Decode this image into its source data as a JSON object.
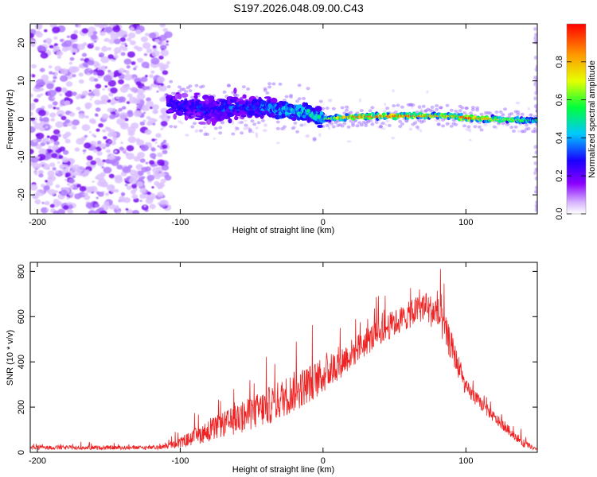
{
  "title": "S197.2026.048.09.00.C43",
  "chart_data": [
    {
      "type": "heatmap",
      "xlabel": "Height of straight line (km)",
      "ylabel": "Frequency (Hz)",
      "xlim": [
        -205,
        150
      ],
      "ylim": [
        -25,
        25
      ],
      "xticks": [
        -200,
        -100,
        0,
        100
      ],
      "yticks": [
        -20,
        -10,
        0,
        10,
        20
      ],
      "colorbar": {
        "label": "Normalized spectral amplitude",
        "range": [
          0,
          1
        ],
        "ticks": [
          "0.0",
          "0.2",
          "0.4",
          "0.6",
          "0.8"
        ],
        "tick_values": [
          0.0,
          0.2,
          0.4,
          0.6,
          0.8
        ],
        "colors": [
          "#ffffff",
          "#d7b4ff",
          "#8a00ff",
          "#1a00ff",
          "#00c8ff",
          "#00ff3c",
          "#e6ff00",
          "#ff9600",
          "#ff0000"
        ]
      },
      "ridge": {
        "description": "high-amplitude band near 0-2 Hz",
        "x": [
          -110,
          -80,
          -50,
          -30,
          -10,
          0,
          20,
          60,
          90,
          100,
          150
        ],
        "freq": [
          4,
          2.5,
          3,
          2.5,
          1.5,
          0,
          0.5,
          0.8,
          0.8,
          0.2,
          -0.5
        ],
        "amplitude": [
          0.3,
          0.35,
          0.4,
          0.5,
          0.55,
          0.6,
          0.9,
          0.9,
          0.8,
          0.95,
          0.5
        ]
      },
      "noise_region": [
        -205,
        -108
      ]
    },
    {
      "type": "line",
      "xlabel": "Height of straight line (km)",
      "ylabel": "SNR (10 * v/v)",
      "xlim": [
        -205,
        150
      ],
      "ylim": [
        0,
        840
      ],
      "xticks": [
        -200,
        -100,
        0,
        100
      ],
      "yticks": [
        0,
        200,
        400,
        600,
        800
      ],
      "color": "#ee2222",
      "envelope": {
        "x": [
          -205,
          -115,
          -100,
          -80,
          -60,
          -40,
          -20,
          0,
          20,
          40,
          60,
          70,
          75,
          80,
          90,
          100,
          120,
          140,
          150
        ],
        "mean": [
          20,
          20,
          40,
          90,
          140,
          190,
          260,
          330,
          430,
          530,
          600,
          640,
          620,
          610,
          460,
          280,
          150,
          40,
          10
        ],
        "spread": [
          15,
          15,
          40,
          80,
          110,
          140,
          150,
          130,
          110,
          100,
          100,
          110,
          120,
          130,
          110,
          60,
          40,
          30,
          10
        ]
      }
    }
  ]
}
